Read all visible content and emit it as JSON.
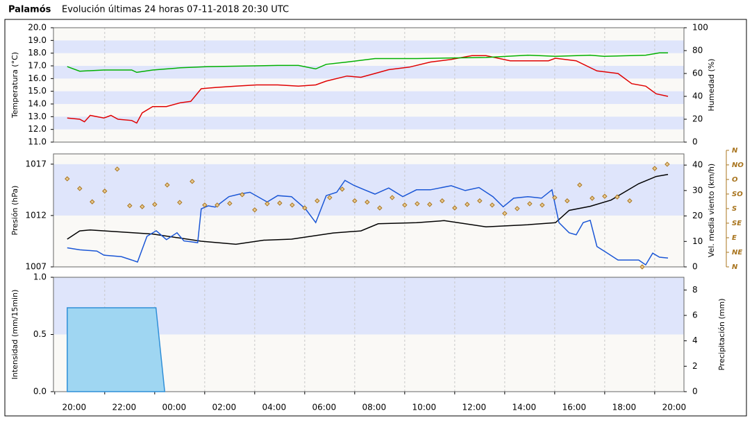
{
  "chart_data": [
    {
      "type": "line",
      "title": "Palamós",
      "subtitle": "Evolución últimas 24 horas 07-11-2018 20:30 UTC",
      "ylabel": "Temperatura (°C)",
      "y2label": "Humedad (%)",
      "xlim": [
        -0.05,
        25.17
      ],
      "ylim": [
        11,
        20
      ],
      "yticks": [
        {
          "value": 11,
          "label": "11.0"
        },
        {
          "value": 12,
          "label": "12.0"
        },
        {
          "value": 13,
          "label": "13.0"
        },
        {
          "value": 14,
          "label": "14.0"
        },
        {
          "value": 15,
          "label": "15.0"
        },
        {
          "value": 16,
          "label": "16.0"
        },
        {
          "value": 17,
          "label": "17.0"
        },
        {
          "value": 18,
          "label": "18.0"
        },
        {
          "value": 19,
          "label": "19.0"
        },
        {
          "value": 20,
          "label": "20.0"
        }
      ],
      "y2lim": [
        0,
        100
      ],
      "y2ticks": [
        0,
        20,
        40,
        60,
        80,
        100
      ],
      "ylabel_color": "#e00000",
      "y2label_color": "#00a000",
      "series": [
        {
          "color": "#e00000",
          "axis": "y",
          "x": [
            0.5,
            1.0,
            1.19,
            1.42,
            1.97,
            2.25,
            2.53,
            3.08,
            3.28,
            3.5,
            3.92,
            4.47,
            5.03,
            5.44,
            5.86,
            6.42,
            7.25,
            8.08,
            8.92,
            9.75,
            10.44,
            10.86,
            11.69,
            12.25,
            12.81,
            13.36,
            14.19,
            15.03,
            15.86,
            16.69,
            17.25,
            18.22,
            19.75,
            20.03,
            20.86,
            21.69,
            22.53,
            23.08,
            23.64,
            24.06,
            24.53
          ],
          "values": [
            12.9,
            12.8,
            12.6,
            13.1,
            12.9,
            13.1,
            12.8,
            12.7,
            12.5,
            13.3,
            13.8,
            13.8,
            14.1,
            14.2,
            15.2,
            15.3,
            15.4,
            15.5,
            15.5,
            15.4,
            15.5,
            15.8,
            16.2,
            16.1,
            16.4,
            16.7,
            16.9,
            17.3,
            17.5,
            17.8,
            17.8,
            17.4,
            17.4,
            17.6,
            17.4,
            16.6,
            16.4,
            15.6,
            15.4,
            14.8,
            14.6
          ]
        },
        {
          "color": "#00b000",
          "axis": "y2",
          "x": [
            0.5,
            1.0,
            1.97,
            3.08,
            3.28,
            3.92,
            5.03,
            6.14,
            8.92,
            9.75,
            10.44,
            10.86,
            11.69,
            12.81,
            14.47,
            17.25,
            18.92,
            20.03,
            21.42,
            21.97,
            23.64,
            24.19,
            24.53
          ],
          "values": [
            66,
            62,
            63,
            63,
            61,
            63,
            65,
            66,
            67,
            67,
            64,
            68,
            70,
            73,
            73,
            74,
            76,
            75,
            76,
            75,
            76,
            78,
            78
          ]
        }
      ]
    },
    {
      "type": "line",
      "ylabel": "Presión (hPa)",
      "y2label": "Vel. media viento (km/h)",
      "xlim": [
        -0.05,
        25.17
      ],
      "ylim": [
        1007,
        1018
      ],
      "yticks": [
        1007,
        1012,
        1017
      ],
      "y2lim": [
        0,
        44.4
      ],
      "y2ticks": [
        0,
        10,
        20,
        30,
        40
      ],
      "y3lim": [
        0,
        349
      ],
      "y3ticks": [
        {
          "value": 0,
          "label": "N"
        },
        {
          "value": 45,
          "label": "NE"
        },
        {
          "value": 90,
          "label": "E"
        },
        {
          "value": 135,
          "label": "SE"
        },
        {
          "value": 180,
          "label": "S"
        },
        {
          "value": 225,
          "label": "SO"
        },
        {
          "value": 270,
          "label": "O"
        },
        {
          "value": 315,
          "label": "NO"
        },
        {
          "value": 360,
          "label": "N"
        }
      ],
      "ylabel_color": "#000000",
      "y2label_color": "#1a56d6",
      "series": [
        {
          "color": "#000000",
          "axis": "y",
          "x": [
            0.5,
            1.0,
            1.42,
            3.92,
            5.86,
            7.25,
            8.36,
            9.47,
            11.14,
            12.25,
            12.94,
            14.47,
            15.58,
            17.25,
            18.92,
            20.03,
            20.58,
            21.42,
            22.25,
            23.36,
            24.06,
            24.53
          ],
          "values": [
            1009.7,
            1010.5,
            1010.6,
            1010.2,
            1009.5,
            1009.2,
            1009.6,
            1009.7,
            1010.3,
            1010.5,
            1011.2,
            1011.3,
            1011.5,
            1010.9,
            1011.1,
            1011.3,
            1012.5,
            1012.9,
            1013.5,
            1015.1,
            1015.8,
            1016.0
          ]
        },
        {
          "color": "#1a56d6",
          "axis": "y2",
          "x": [
            0.5,
            1.0,
            1.69,
            1.97,
            2.67,
            3.08,
            3.31,
            3.69,
            4.06,
            4.47,
            4.89,
            5.17,
            5.44,
            5.72,
            5.86,
            6.14,
            6.42,
            6.97,
            7.39,
            7.81,
            8.5,
            8.92,
            9.47,
            10.03,
            10.44,
            10.86,
            11.28,
            11.61,
            11.97,
            12.39,
            12.81,
            13.36,
            13.92,
            14.47,
            15.03,
            15.86,
            16.42,
            16.97,
            17.53,
            17.94,
            18.36,
            18.92,
            19.47,
            19.89,
            20.17,
            20.58,
            20.86,
            21.14,
            21.42,
            21.69,
            22.11,
            22.53,
            23.36,
            23.64,
            23.92,
            24.19,
            24.53
          ],
          "values": [
            7.5,
            6.7,
            6.2,
            4.6,
            4.0,
            2.7,
            1.9,
            12.0,
            14.2,
            10.7,
            13.4,
            10.2,
            9.9,
            9.5,
            22.8,
            24,
            23.5,
            27.6,
            28.6,
            29.3,
            25.5,
            28,
            27.6,
            22.8,
            17.4,
            28,
            29.3,
            34,
            32,
            30.3,
            28.6,
            31,
            27.6,
            30.3,
            30.3,
            31.9,
            30,
            31.2,
            27.6,
            23.6,
            27,
            27.6,
            27,
            30.3,
            17.4,
            13.4,
            12.6,
            17.4,
            18.3,
            8,
            5.4,
            2.7,
            2.7,
            0.8,
            5.4,
            3.8,
            3.5
          ]
        },
        {
          "type": "scatter",
          "color": "#a8741e",
          "axis": "y3",
          "x": [
            0.5,
            1.0,
            1.5,
            2.0,
            2.5,
            3.0,
            3.5,
            4.0,
            4.5,
            5.0,
            5.5,
            6.0,
            6.5,
            7.0,
            7.5,
            8.0,
            8.5,
            9.0,
            9.5,
            10.0,
            10.5,
            11.0,
            11.5,
            12.0,
            12.5,
            13.0,
            13.5,
            14.0,
            14.5,
            15.0,
            15.5,
            16.0,
            16.5,
            17.0,
            17.5,
            18.0,
            18.5,
            19.0,
            19.5,
            20.0,
            20.5,
            21.0,
            21.5,
            22.0,
            22.5,
            23.0,
            23.5,
            24.0,
            24.5
          ],
          "values": [
            272,
            242,
            201,
            234,
            302,
            189,
            186,
            193,
            253,
            199,
            264,
            191,
            191,
            196,
            223,
            176,
            195,
            197,
            191,
            182,
            204,
            214,
            240,
            204,
            200,
            182,
            214,
            191,
            195,
            193,
            204,
            182,
            193,
            204,
            191,
            165,
            180,
            195,
            191,
            214,
            204,
            253,
            212,
            218,
            216,
            204,
            0,
            304,
            317
          ]
        }
      ]
    },
    {
      "type": "area",
      "ylabel": "Intensidad (mm/15min)",
      "y2label": "Precipitación (mm)",
      "xlim": [
        -0.05,
        25.17
      ],
      "xticks": [
        {
          "value": 0,
          "label": "20:00"
        },
        {
          "value": 2,
          "label": "22:00"
        },
        {
          "value": 4,
          "label": "00:00"
        },
        {
          "value": 6,
          "label": "02:00"
        },
        {
          "value": 8,
          "label": "04:00"
        },
        {
          "value": 10,
          "label": "06:00"
        },
        {
          "value": 12,
          "label": "08:00"
        },
        {
          "value": 14,
          "label": "10:00"
        },
        {
          "value": 16,
          "label": "12:00"
        },
        {
          "value": 18,
          "label": "14:00"
        },
        {
          "value": 20,
          "label": "16:00"
        },
        {
          "value": 22,
          "label": "18:00"
        },
        {
          "value": 24,
          "label": "20:00"
        }
      ],
      "ylim": [
        0,
        1
      ],
      "yticks": [
        {
          "value": 0,
          "label": "0.0"
        },
        {
          "value": 0.5,
          "label": "0.5"
        },
        {
          "value": 1,
          "label": "1.0"
        }
      ],
      "y2lim": [
        0,
        9
      ],
      "y2ticks": [
        0,
        2,
        4,
        6,
        8
      ],
      "ylabel_color": "#1a2fb0",
      "y2label_color": "#3aa0e0",
      "series": [
        {
          "color": "#2f8fd8",
          "fill": "#9fd6f2",
          "axis": "y2",
          "x": [
            0.5,
            0.5,
            4.05,
            4.4
          ],
          "values": [
            0,
            6.6,
            6.6,
            0
          ]
        }
      ]
    }
  ]
}
